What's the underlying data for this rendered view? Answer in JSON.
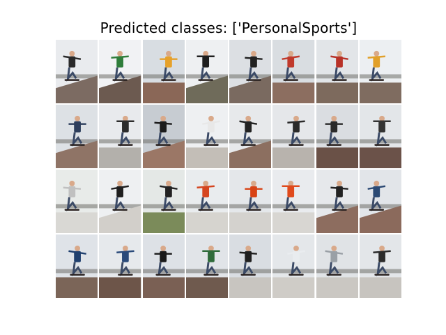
{
  "title": "Predicted classes: ['PersonalSports']",
  "tiles": [
    {
      "sky": "#e9ebee",
      "ground": "#7c6b62",
      "shirt": "#2a2a2a",
      "ramp": true
    },
    {
      "sky": "#f1f2f4",
      "ground": "#6c5a50",
      "shirt": "#2f7d3a",
      "ramp": true
    },
    {
      "sky": "#d8dde2",
      "ground": "#8a6757",
      "shirt": "#e6a12a",
      "ramp": false
    },
    {
      "sky": "#eef0f2",
      "ground": "#6f6b5a",
      "shirt": "#1e1e1e",
      "ramp": true
    },
    {
      "sky": "#dcdfe3",
      "ground": "#7a6a60",
      "shirt": "#222222",
      "ramp": true
    },
    {
      "sky": "#d9dde1",
      "ground": "#8c6e60",
      "shirt": "#c0392b",
      "ramp": false
    },
    {
      "sky": "#e2e5e8",
      "ground": "#7d6a5d",
      "shirt": "#b83227",
      "ramp": false
    },
    {
      "sky": "#eceff2",
      "ground": "#7f6c60",
      "shirt": "#e1a02a",
      "ramp": false
    },
    {
      "sky": "#dde1e5",
      "ground": "#8f7466",
      "shirt": "#2d3e5c",
      "ramp": true
    },
    {
      "sky": "#e8eaed",
      "ground": "#b3b0ab",
      "shirt": "#2b2b2b",
      "ramp": false
    },
    {
      "sky": "#c7ccd2",
      "ground": "#9b7766",
      "shirt": "#1c1c1c",
      "ramp": true
    },
    {
      "sky": "#eef0f2",
      "ground": "#c3beb7",
      "shirt": "#e8e8e8",
      "ramp": false
    },
    {
      "sky": "#e7e9eb",
      "ground": "#8c6f60",
      "shirt": "#222222",
      "ramp": true
    },
    {
      "sky": "#e5e7ea",
      "ground": "#b8b3ad",
      "shirt": "#2a2a2a",
      "ramp": false
    },
    {
      "sky": "#dadde1",
      "ground": "#6a5147",
      "shirt": "#2b2b2b",
      "ramp": false
    },
    {
      "sky": "#e3e6e9",
      "ground": "#6b5249",
      "shirt": "#333333",
      "ramp": false
    },
    {
      "sky": "#e8ebe9",
      "ground": "#d9d8d4",
      "shirt": "#c0c0c0",
      "ramp": false
    },
    {
      "sky": "#eef0f2",
      "ground": "#d2cfca",
      "shirt": "#1f1f1f",
      "ramp": true
    },
    {
      "sky": "#e4e8e6",
      "ground": "#7b8b5a",
      "shirt": "#222222",
      "ramp": false
    },
    {
      "sky": "#e9ecee",
      "ground": "#d6d4cf",
      "shirt": "#d5451f",
      "ramp": false
    },
    {
      "sky": "#e4e7ea",
      "ground": "#d4d2ce",
      "shirt": "#d84315",
      "ramp": false
    },
    {
      "sky": "#e9ebee",
      "ground": "#d8d6d2",
      "shirt": "#e04a1c",
      "ramp": false
    },
    {
      "sky": "#e6e8eb",
      "ground": "#8d6d5f",
      "shirt": "#222222",
      "ramp": true
    },
    {
      "sky": "#e2e5e9",
      "ground": "#8b6a5c",
      "shirt": "#2c4a74",
      "ramp": true
    },
    {
      "sky": "#dfe3e8",
      "ground": "#7b6558",
      "shirt": "#1f3f6e",
      "ramp": false
    },
    {
      "sky": "#e6e9ec",
      "ground": "#6d5549",
      "shirt": "#2a4a7a",
      "ramp": false
    },
    {
      "sky": "#dde1e6",
      "ground": "#7a6054",
      "shirt": "#1a1a1a",
      "ramp": false
    },
    {
      "sky": "#e1e4e8",
      "ground": "#6f5a4e",
      "shirt": "#2f6b3a",
      "ramp": false
    },
    {
      "sky": "#d9dde2",
      "ground": "#c8c5c0",
      "shirt": "#1f1f1f",
      "ramp": false
    },
    {
      "sky": "#e4e7ea",
      "ground": "#cfccc7",
      "shirt": "#e9ecef",
      "ramp": false
    },
    {
      "sky": "#e0e3e6",
      "ground": "#cac7c2",
      "shirt": "#9aa0a6",
      "ramp": false
    },
    {
      "sky": "#e3e6e9",
      "ground": "#c7c4bf",
      "shirt": "#2b2b2b",
      "ramp": false
    }
  ]
}
